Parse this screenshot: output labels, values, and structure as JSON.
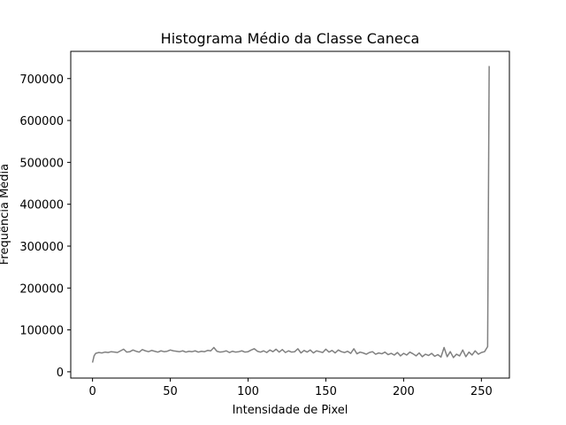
{
  "chart_data": {
    "type": "line",
    "title": "Histograma Médio da Classe Caneca",
    "xlabel": "Intensidade de Pixel",
    "ylabel": "Frequência Média",
    "xlim": [
      -14,
      268
    ],
    "ylim": [
      -15000,
      765000
    ],
    "xticks": [
      0,
      50,
      100,
      150,
      200,
      250
    ],
    "yticks": [
      0,
      100000,
      200000,
      300000,
      400000,
      500000,
      600000,
      700000
    ],
    "grid": false,
    "series": [
      {
        "color": "#808080",
        "x": [
          0,
          1,
          2,
          4,
          6,
          8,
          10,
          12,
          14,
          16,
          18,
          20,
          22,
          24,
          26,
          28,
          30,
          32,
          34,
          36,
          38,
          40,
          42,
          44,
          46,
          48,
          50,
          52,
          54,
          56,
          58,
          60,
          62,
          64,
          66,
          68,
          70,
          72,
          74,
          76,
          78,
          80,
          82,
          84,
          86,
          88,
          90,
          92,
          94,
          96,
          98,
          100,
          102,
          104,
          106,
          108,
          110,
          112,
          114,
          116,
          118,
          120,
          122,
          124,
          126,
          128,
          130,
          132,
          134,
          136,
          138,
          140,
          142,
          144,
          146,
          148,
          150,
          152,
          154,
          156,
          158,
          160,
          162,
          164,
          166,
          168,
          170,
          172,
          174,
          176,
          178,
          180,
          182,
          184,
          186,
          188,
          190,
          192,
          194,
          196,
          198,
          200,
          202,
          204,
          206,
          208,
          210,
          212,
          214,
          216,
          218,
          220,
          222,
          224,
          226,
          228,
          230,
          232,
          234,
          236,
          238,
          240,
          242,
          244,
          246,
          248,
          250,
          252,
          254,
          255
        ],
        "values": [
          22000,
          38000,
          44000,
          46000,
          45000,
          47000,
          46000,
          48000,
          47000,
          46000,
          50000,
          54000,
          47000,
          48000,
          52000,
          49000,
          47000,
          53000,
          50000,
          48000,
          51000,
          49000,
          47000,
          50000,
          48000,
          49000,
          52000,
          50000,
          49000,
          48000,
          50000,
          47000,
          49000,
          48000,
          50000,
          47000,
          49000,
          48000,
          51000,
          50000,
          58000,
          49000,
          47000,
          48000,
          50000,
          46000,
          49000,
          47000,
          48000,
          50000,
          47000,
          48000,
          52000,
          55000,
          49000,
          47000,
          50000,
          46000,
          52000,
          48000,
          54000,
          47000,
          53000,
          46000,
          50000,
          47000,
          48000,
          55000,
          45000,
          51000,
          47000,
          52000,
          45000,
          50000,
          48000,
          46000,
          54000,
          47000,
          51000,
          45000,
          52000,
          48000,
          46000,
          49000,
          44000,
          55000,
          43000,
          47000,
          45000,
          42000,
          46000,
          48000,
          42000,
          45000,
          43000,
          47000,
          41000,
          44000,
          40000,
          46000,
          38000,
          44000,
          40000,
          47000,
          43000,
          38000,
          45000,
          36000,
          42000,
          39000,
          44000,
          37000,
          41000,
          35000,
          58000,
          36000,
          48000,
          34000,
          42000,
          38000,
          52000,
          36000,
          47000,
          40000,
          50000,
          42000,
          46000,
          48000,
          60000,
          730000
        ]
      }
    ]
  }
}
